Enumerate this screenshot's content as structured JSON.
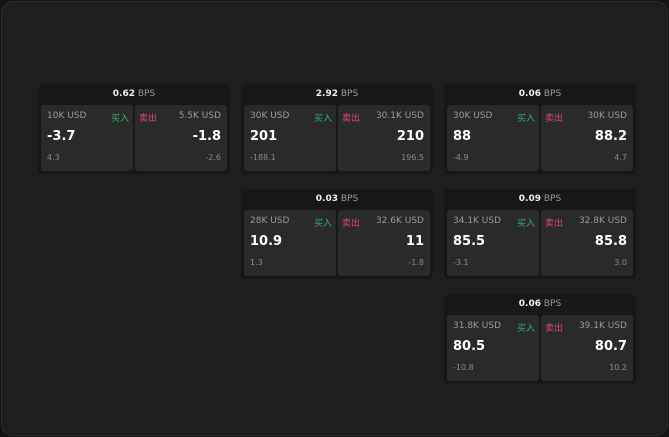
{
  "unit": "BPS",
  "buy_label": "买入",
  "sell_label": "卖出",
  "colors": {
    "buy": "#2fb36a",
    "sell": "#e0457a"
  },
  "cards": [
    {
      "spread": "0.62",
      "buy": {
        "size": "10K USD",
        "price": "-3.7",
        "change": "4.3"
      },
      "sell": {
        "size": "5.5K USD",
        "price": "-1.8",
        "change": "-2.6"
      }
    },
    {
      "spread": "2.92",
      "buy": {
        "size": "30K USD",
        "price": "201",
        "change": "-188.1"
      },
      "sell": {
        "size": "30.1K USD",
        "price": "210",
        "change": "196.5"
      }
    },
    {
      "spread": "0.06",
      "buy": {
        "size": "30K USD",
        "price": "88",
        "change": "-4.9"
      },
      "sell": {
        "size": "30K USD",
        "price": "88.2",
        "change": "4.7"
      }
    },
    {
      "spread": "0.03",
      "buy": {
        "size": "28K USD",
        "price": "10.9",
        "change": "1.3"
      },
      "sell": {
        "size": "32.6K USD",
        "price": "11",
        "change": "-1.8"
      }
    },
    {
      "spread": "0.09",
      "buy": {
        "size": "34.1K USD",
        "price": "85.5",
        "change": "-3.1"
      },
      "sell": {
        "size": "32.8K USD",
        "price": "85.8",
        "change": "3.0"
      }
    },
    {
      "spread": "0.06",
      "buy": {
        "size": "31.8K USD",
        "price": "80.5",
        "change": "-10.8"
      },
      "sell": {
        "size": "39.1K USD",
        "price": "80.7",
        "change": "10.2"
      }
    }
  ]
}
